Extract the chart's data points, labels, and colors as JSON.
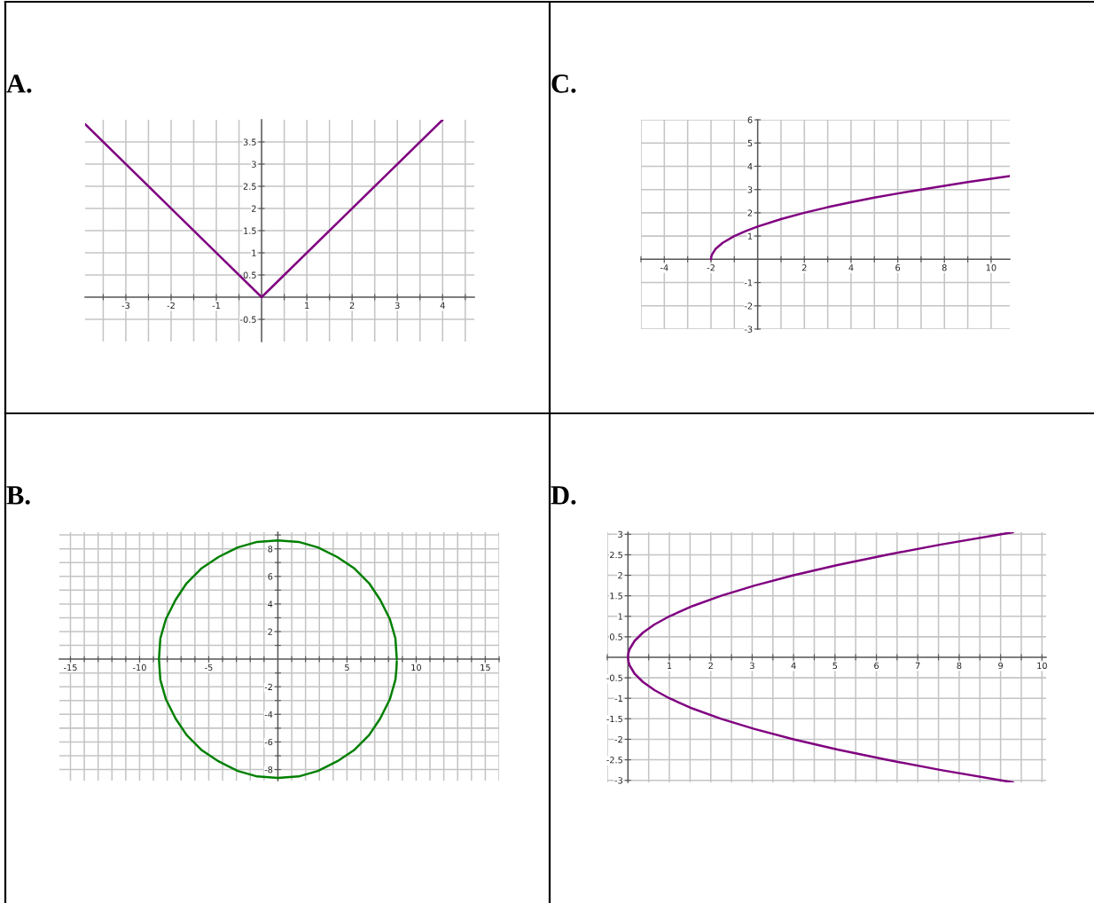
{
  "chart_data": [
    {
      "type": "line",
      "title": "A.",
      "grid": true,
      "xlim": [
        -3.9,
        4.7
      ],
      "ylim": [
        -1,
        4
      ],
      "xticks": [
        {
          "value": -3.5,
          "label": null
        },
        -3,
        {
          "value": -2.5,
          "label": null
        },
        -2,
        {
          "value": -1.5,
          "label": null
        },
        -1,
        {
          "value": -0.5,
          "label": null
        },
        {
          "value": 0.5,
          "label": null
        },
        1,
        {
          "value": 1.5,
          "label": null
        },
        2,
        {
          "value": 2.5,
          "label": null
        },
        3,
        {
          "value": 3.5,
          "label": null
        },
        4,
        {
          "value": 4.5,
          "label": null
        }
      ],
      "yticks": [
        -0.5,
        0.5,
        1,
        1.5,
        2,
        2.5,
        3,
        3.5
      ],
      "series": [
        {
          "color": "#800080",
          "x": [
            -3.9,
            0,
            4
          ],
          "values": [
            3.9,
            0,
            4
          ]
        }
      ]
    },
    {
      "type": "line",
      "title": "C.",
      "grid": true,
      "xlim": [
        -5,
        10.8
      ],
      "ylim": [
        -3,
        6
      ],
      "xticks": [
        {
          "value": -5,
          "label": null
        },
        -4,
        {
          "value": -3,
          "label": null
        },
        -2,
        {
          "value": -1,
          "label": null
        },
        {
          "value": 1,
          "label": null
        },
        2,
        {
          "value": 3,
          "label": null
        },
        4,
        {
          "value": 5,
          "label": null
        },
        6,
        {
          "value": 7,
          "label": null
        },
        8,
        {
          "value": 9,
          "label": null
        },
        10
      ],
      "yticks": [
        -3,
        -2,
        -1,
        1,
        2,
        3,
        4,
        5,
        6
      ],
      "series": [
        {
          "color": "#800080",
          "x": [
            -2,
            -1.99,
            -1.95,
            -1.8,
            -1.5,
            -1,
            -0.5,
            0,
            1,
            2,
            3,
            4,
            5,
            6,
            7,
            8,
            9,
            10,
            10.8
          ],
          "values": [
            0,
            0.1,
            0.22,
            0.45,
            0.71,
            1,
            1.22,
            1.41,
            1.73,
            2,
            2.24,
            2.45,
            2.65,
            2.83,
            3,
            3.16,
            3.32,
            3.46,
            3.58
          ]
        }
      ]
    },
    {
      "type": "line",
      "title": "B.",
      "grid": true,
      "xlim": [
        -15.8,
        16
      ],
      "ylim": [
        -8.8,
        9.2
      ],
      "xticks": [
        -15,
        {
          "value": -14,
          "label": null
        },
        {
          "value": -13,
          "label": null
        },
        {
          "value": -12,
          "label": null
        },
        {
          "value": -11,
          "label": null
        },
        -10,
        {
          "value": -9,
          "label": null
        },
        {
          "value": -8,
          "label": null
        },
        {
          "value": -7,
          "label": null
        },
        {
          "value": -6,
          "label": null
        },
        -5,
        {
          "value": -4,
          "label": null
        },
        {
          "value": -3,
          "label": null
        },
        {
          "value": -2,
          "label": null
        },
        {
          "value": -1,
          "label": null
        },
        {
          "value": 1,
          "label": null
        },
        {
          "value": 2,
          "label": null
        },
        {
          "value": 3,
          "label": null
        },
        {
          "value": 4,
          "label": null
        },
        5,
        {
          "value": 6,
          "label": null
        },
        {
          "value": 7,
          "label": null
        },
        {
          "value": 8,
          "label": null
        },
        {
          "value": 9,
          "label": null
        },
        10,
        {
          "value": 11,
          "label": null
        },
        {
          "value": 12,
          "label": null
        },
        {
          "value": 13,
          "label": null
        },
        {
          "value": 14,
          "label": null
        },
        15,
        {
          "value": 16,
          "label": null
        }
      ],
      "yticks": [
        -8,
        {
          "value": -7,
          "label": null
        },
        -6,
        {
          "value": -5,
          "label": null
        },
        -4,
        {
          "value": -3,
          "label": null
        },
        -2,
        {
          "value": -1,
          "label": null
        },
        {
          "value": 1,
          "label": null
        },
        2,
        {
          "value": 3,
          "label": null
        },
        4,
        {
          "value": 5,
          "label": null
        },
        6,
        {
          "value": 7,
          "label": null
        },
        8,
        {
          "value": 9,
          "label": null
        }
      ],
      "series": [
        {
          "color": "#008000",
          "x": [
            8.6,
            8.5,
            8.1,
            7.4,
            6.6,
            5.5,
            4.3,
            2.9,
            1.5,
            0,
            -1.5,
            -2.9,
            -4.3,
            -5.5,
            -6.6,
            -7.4,
            -8.1,
            -8.5,
            -8.6,
            -8.5,
            -8.1,
            -7.4,
            -6.6,
            -5.5,
            -4.3,
            -2.9,
            -1.5,
            0,
            1.5,
            2.9,
            4.3,
            5.5,
            6.6,
            7.4,
            8.1,
            8.5,
            8.57,
            8.6
          ],
          "values": [
            0,
            1.5,
            2.9,
            4.3,
            5.5,
            6.6,
            7.4,
            8.1,
            8.5,
            8.6,
            8.5,
            8.1,
            7.4,
            6.6,
            5.5,
            4.3,
            2.9,
            1.5,
            0,
            -1.5,
            -2.9,
            -4.3,
            -5.5,
            -6.6,
            -7.4,
            -8.1,
            -8.5,
            -8.6,
            -8.5,
            -8.1,
            -7.4,
            -6.6,
            -5.5,
            -4.3,
            -2.9,
            -1.5,
            -0.75,
            -0.15
          ]
        }
      ]
    },
    {
      "type": "line",
      "title": "D.",
      "grid": true,
      "xlim": [
        -0.5,
        10.1
      ],
      "ylim": [
        -3.05,
        3.05
      ],
      "xticks": [
        {
          "value": -0.5,
          "label": null
        },
        {
          "value": 0.5,
          "label": null
        },
        1,
        {
          "value": 1.5,
          "label": null
        },
        2,
        {
          "value": 2.5,
          "label": null
        },
        3,
        {
          "value": 3.5,
          "label": null
        },
        4,
        {
          "value": 4.5,
          "label": null
        },
        5,
        {
          "value": 5.5,
          "label": null
        },
        6,
        {
          "value": 6.5,
          "label": null
        },
        7,
        {
          "value": 7.5,
          "label": null
        },
        8,
        {
          "value": 8.5,
          "label": null
        },
        9,
        {
          "value": 9.5,
          "label": null
        },
        10
      ],
      "yticks": [
        -3,
        -2.5,
        -2,
        -1.5,
        -1,
        -0.5,
        0.5,
        1,
        1.5,
        2,
        2.5,
        3
      ],
      "series": [
        {
          "color": "#800080",
          "x": [
            9.3,
            7.56,
            6.25,
            5.06,
            4,
            3.06,
            2.25,
            1.56,
            1,
            0.64,
            0.36,
            0.16,
            0.04,
            0.01,
            0,
            0.01,
            0.04,
            0.16,
            0.36,
            0.64,
            1,
            1.56,
            2.25,
            3.06,
            4,
            5.06,
            6.25,
            7.56,
            9.3
          ],
          "values": [
            -3.05,
            -2.75,
            -2.5,
            -2.25,
            -2,
            -1.75,
            -1.5,
            -1.25,
            -1,
            -0.8,
            -0.6,
            -0.4,
            -0.2,
            -0.1,
            0,
            0.1,
            0.2,
            0.4,
            0.6,
            0.8,
            1,
            1.25,
            1.5,
            1.75,
            2,
            2.25,
            2.5,
            2.75,
            3.05
          ]
        }
      ]
    }
  ]
}
